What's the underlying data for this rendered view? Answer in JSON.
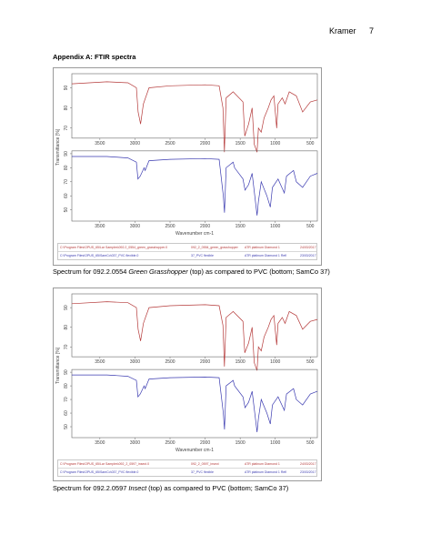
{
  "header": {
    "author": "Kramer",
    "page": "7"
  },
  "appendix_title": "Appendix A: FTIR spectra",
  "figures": [
    {
      "caption_pre": "Spectrum for 092.2.0554 ",
      "caption_em": "Green Grasshopper",
      "caption_post": " (top) as compared to PVC (bottom; SamCo 37)",
      "xlabel": "Wavenumber cm-1",
      "ylabel": "Transmittance [%]",
      "x_ticks": [
        "3500",
        "3000",
        "2500",
        "2000",
        "1500",
        "1000",
        "500"
      ],
      "y_ticks_top": [
        "90",
        "80",
        "70"
      ],
      "y_ticks_bottom": [
        "90",
        "80",
        "70",
        "60",
        "50"
      ],
      "legend": [
        {
          "path": "C:\\Program Files\\OPUS_65\\Lar Samples\\092.2_0554_green_grasshopper.0",
          "name": "092_2_0554_green_grasshopper",
          "instrument": "ATR platinum Diamond 1",
          "date": "24/03/2017"
        },
        {
          "path": "C:\\Program Files\\OPUS_65\\SamCo\\037_PVC flexible.0",
          "name": "37_PVC flexible",
          "instrument": "ATR platinum Diamond 1 Refl",
          "date": "23/03/2017"
        }
      ],
      "chart_data": {
        "type": "line",
        "xlabel": "Wavenumber cm-1",
        "ylabel": "Transmittance [%]",
        "xlim": [
          3900,
          400
        ],
        "series": [
          {
            "name": "092_2_0554_green_grasshopper",
            "color": "#b53a3a",
            "x": [
              3900,
              3400,
              3100,
              2980,
              2955,
              2920,
              2880,
              2850,
              2800,
              2500,
              2000,
              1800,
              1745,
              1725,
              1700,
              1600,
              1460,
              1435,
              1380,
              1330,
              1300,
              1260,
              1240,
              1200,
              1160,
              1100,
              1060,
              1020,
              980,
              960,
              900,
              860,
              800,
              700,
              610,
              500,
              400
            ],
            "y": [
              92,
              93,
              92.5,
              90,
              78,
              72,
              82,
              85,
              90,
              91,
              91.5,
              91,
              80,
              58,
              85,
              88,
              83,
              66,
              72,
              80,
              62,
              58,
              70,
              68,
              75,
              80,
              84,
              86,
              70,
              82,
              85,
              82,
              88,
              86,
              78,
              83,
              84
            ]
          },
          {
            "name": "37_PVC flexible",
            "color": "#3a3ab0",
            "x": [
              3900,
              3400,
              3100,
              2980,
              2958,
              2925,
              2870,
              2855,
              2800,
              2500,
              2000,
              1800,
              1740,
              1723,
              1700,
              1600,
              1580,
              1460,
              1430,
              1380,
              1330,
              1280,
              1260,
              1240,
              1200,
              1120,
              1070,
              1040,
              960,
              870,
              840,
              740,
              700,
              610,
              500,
              400
            ],
            "y": [
              88,
              88,
              87,
              84,
              72,
              74,
              80,
              78,
              85,
              86,
              86.5,
              86,
              60,
              48,
              80,
              84,
              80,
              72,
              64,
              68,
              76,
              55,
              46,
              56,
              70,
              60,
              52,
              66,
              72,
              62,
              74,
              78,
              70,
              66,
              74,
              76
            ]
          }
        ]
      }
    },
    {
      "caption_pre": "Spectrum for 092.2.0597 ",
      "caption_em": "Insect",
      "caption_post": " (top) as compared to PVC (bottom; SamCo 37)",
      "xlabel": "Wavenumber cm-1",
      "ylabel": "Transmittance [%]",
      "x_ticks": [
        "3500",
        "3000",
        "2500",
        "2000",
        "1500",
        "1000",
        "500"
      ],
      "y_ticks_top": [
        "90",
        "80",
        "70"
      ],
      "y_ticks_bottom": [
        "90",
        "80",
        "70",
        "60",
        "50"
      ],
      "legend": [
        {
          "path": "C:\\Program Files\\OPUS_65\\Lar Samples\\092_2_0597_insect.0",
          "name": "092_2_0597_insect",
          "instrument": "ATR platinum Diamond 1",
          "date": "24/03/2017"
        },
        {
          "path": "C:\\Program Files\\OPUS_65\\SamCo\\037_PVC flexible.0",
          "name": "37_PVC flexible",
          "instrument": "ATR platinum Diamond 1 Refl",
          "date": "23/03/2017"
        }
      ],
      "chart_data": {
        "type": "line",
        "xlabel": "Wavenumber cm-1",
        "ylabel": "Transmittance [%]",
        "xlim": [
          3900,
          400
        ],
        "series": [
          {
            "name": "092_2_0597_insect",
            "color": "#b53a3a",
            "x": [
              3900,
              3400,
              3100,
              2980,
              2955,
              2920,
              2880,
              2850,
              2800,
              2500,
              2000,
              1800,
              1745,
              1725,
              1700,
              1600,
              1460,
              1435,
              1380,
              1330,
              1300,
              1260,
              1240,
              1200,
              1160,
              1100,
              1060,
              1020,
              980,
              960,
              900,
              860,
              800,
              700,
              610,
              500,
              400
            ],
            "y": [
              92,
              93,
              92.5,
              90,
              79,
              73,
              82,
              85,
              90,
              91,
              91.5,
              91,
              81,
              60,
              85,
              88,
              83,
              67,
              72,
              80,
              62,
              58,
              70,
              68,
              75,
              80,
              84,
              86,
              71,
              82,
              85,
              82,
              88,
              86,
              79,
              83,
              84
            ]
          },
          {
            "name": "37_PVC flexible",
            "color": "#3a3ab0",
            "x": [
              3900,
              3400,
              3100,
              2980,
              2958,
              2925,
              2870,
              2855,
              2800,
              2500,
              2000,
              1800,
              1740,
              1723,
              1700,
              1600,
              1580,
              1460,
              1430,
              1380,
              1330,
              1280,
              1260,
              1240,
              1200,
              1120,
              1070,
              1040,
              960,
              870,
              840,
              740,
              700,
              610,
              500,
              400
            ],
            "y": [
              88,
              88,
              87,
              84,
              72,
              74,
              80,
              78,
              85,
              86,
              86.5,
              86,
              60,
              48,
              80,
              84,
              80,
              72,
              64,
              68,
              76,
              55,
              46,
              56,
              70,
              60,
              52,
              66,
              72,
              62,
              74,
              78,
              70,
              66,
              74,
              76
            ]
          }
        ]
      }
    }
  ]
}
